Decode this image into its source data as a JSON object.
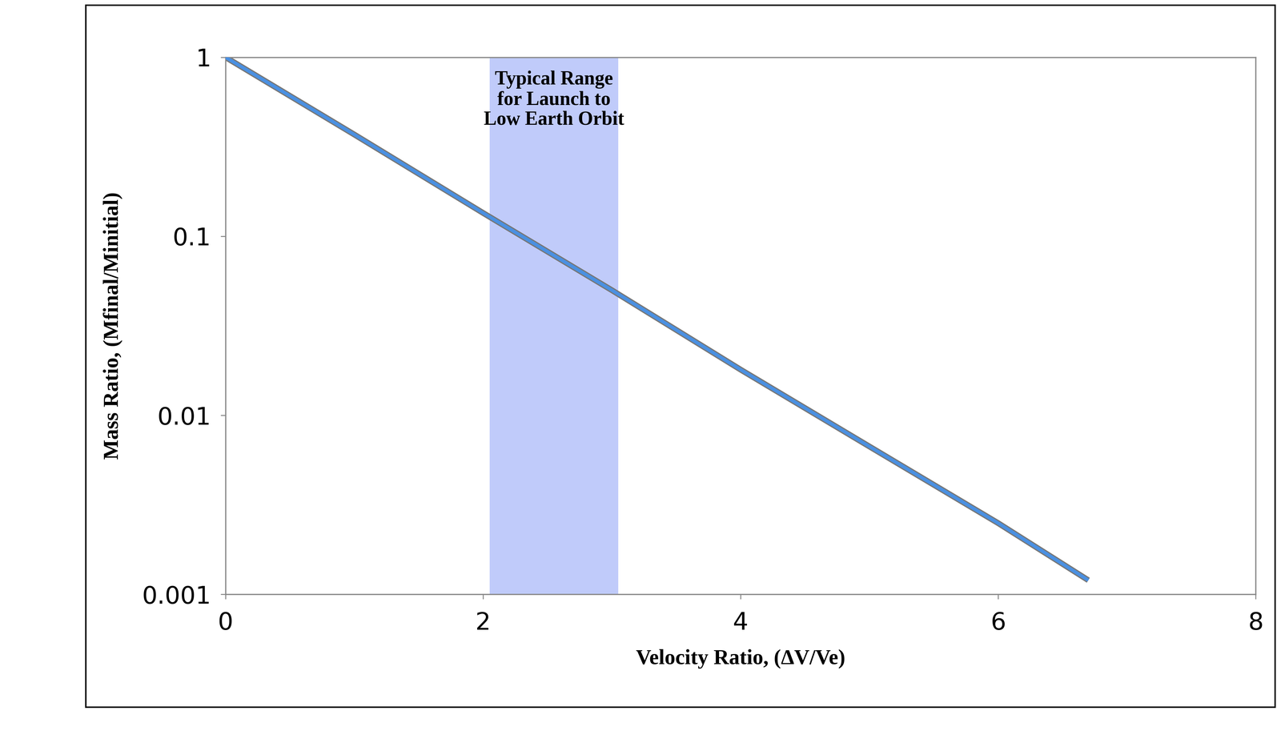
{
  "chart_data": {
    "type": "line",
    "x_label": "Velocity Ratio, (ΔV/Ve)",
    "y_label": "Mass Ratio, (Mfinal/Minitial)",
    "x": [
      0,
      1,
      2,
      3,
      4,
      5,
      6,
      6.7
    ],
    "values": [
      1,
      0.37,
      0.135,
      0.05,
      0.018,
      0.0067,
      0.0025,
      0.0012
    ],
    "color": "#4a90e2",
    "xlim": [
      0,
      8
    ],
    "xticks": [
      0,
      2,
      4,
      6,
      8
    ],
    "ylim": [
      0.001,
      1
    ],
    "yticks": [
      0.001,
      0.01,
      0.1,
      1
    ],
    "log": "y",
    "grid": false,
    "highlight": {
      "x": [
        2.05,
        3.05
      ],
      "color": "#c0cbfa",
      "label": "Typical Range\nfor Launch to\nLow Earth Orbit"
    }
  }
}
